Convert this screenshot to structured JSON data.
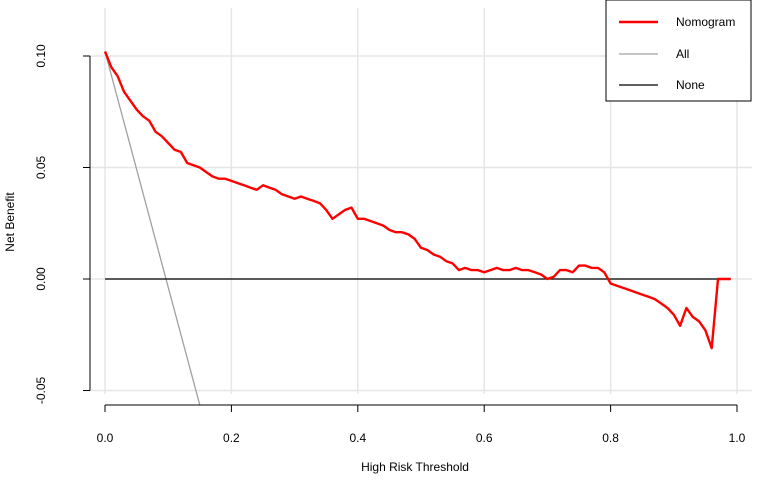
{
  "chart_data": {
    "type": "line",
    "xlabel": "High Risk Threshold",
    "ylabel": "Net Benefit",
    "xlim": [
      0,
      1
    ],
    "ylim": [
      -0.05,
      0.105
    ],
    "xticks": [
      "0.0",
      "0.2",
      "0.4",
      "0.6",
      "0.8",
      "1.0"
    ],
    "xtick_values": [
      0,
      0.2,
      0.4,
      0.6,
      0.8,
      1.0
    ],
    "yticks": [
      "-0.05",
      "0.00",
      "0.05",
      "0.10"
    ],
    "ytick_values": [
      -0.05,
      0,
      0.05,
      0.1
    ],
    "grid": true,
    "legend_position": "top-right",
    "series": [
      {
        "name": "Nomogram",
        "color": "#ff0000",
        "x": [
          0.0,
          0.01,
          0.02,
          0.03,
          0.04,
          0.05,
          0.06,
          0.07,
          0.08,
          0.09,
          0.1,
          0.11,
          0.12,
          0.13,
          0.14,
          0.15,
          0.16,
          0.17,
          0.18,
          0.19,
          0.2,
          0.21,
          0.22,
          0.23,
          0.24,
          0.25,
          0.26,
          0.27,
          0.28,
          0.29,
          0.3,
          0.31,
          0.32,
          0.33,
          0.34,
          0.35,
          0.36,
          0.37,
          0.38,
          0.39,
          0.4,
          0.41,
          0.42,
          0.43,
          0.44,
          0.45,
          0.46,
          0.47,
          0.48,
          0.49,
          0.5,
          0.51,
          0.52,
          0.53,
          0.54,
          0.55,
          0.56,
          0.57,
          0.58,
          0.59,
          0.6,
          0.61,
          0.62,
          0.63,
          0.64,
          0.65,
          0.66,
          0.67,
          0.68,
          0.69,
          0.7,
          0.71,
          0.72,
          0.73,
          0.74,
          0.75,
          0.76,
          0.77,
          0.78,
          0.79,
          0.8,
          0.81,
          0.82,
          0.83,
          0.84,
          0.85,
          0.86,
          0.87,
          0.88,
          0.89,
          0.9,
          0.91,
          0.92,
          0.93,
          0.94,
          0.95,
          0.96,
          0.97,
          0.98,
          0.99
        ],
        "y": [
          0.102,
          0.095,
          0.091,
          0.084,
          0.08,
          0.076,
          0.073,
          0.071,
          0.066,
          0.064,
          0.061,
          0.058,
          0.057,
          0.052,
          0.051,
          0.05,
          0.048,
          0.046,
          0.045,
          0.045,
          0.044,
          0.043,
          0.042,
          0.041,
          0.04,
          0.042,
          0.041,
          0.04,
          0.038,
          0.037,
          0.036,
          0.037,
          0.036,
          0.035,
          0.034,
          0.031,
          0.027,
          0.029,
          0.031,
          0.032,
          0.027,
          0.027,
          0.026,
          0.025,
          0.024,
          0.022,
          0.021,
          0.021,
          0.02,
          0.018,
          0.014,
          0.013,
          0.011,
          0.01,
          0.008,
          0.007,
          0.004,
          0.005,
          0.004,
          0.004,
          0.003,
          0.004,
          0.005,
          0.004,
          0.004,
          0.005,
          0.004,
          0.004,
          0.003,
          0.002,
          0.0,
          0.001,
          0.004,
          0.004,
          0.003,
          0.006,
          0.006,
          0.005,
          0.005,
          0.003,
          -0.002,
          -0.003,
          -0.004,
          -0.005,
          -0.006,
          -0.007,
          -0.008,
          -0.009,
          -0.011,
          -0.013,
          -0.016,
          -0.021,
          -0.013,
          -0.017,
          -0.019,
          -0.023,
          -0.031,
          0.0,
          0.0,
          0.0
        ]
      },
      {
        "name": "All",
        "color": "#a0a0a0",
        "x": [
          0.0,
          0.15
        ],
        "y": [
          0.102,
          -0.0565
        ]
      },
      {
        "name": "None",
        "color": "#000000",
        "x": [
          0.0,
          0.99
        ],
        "y": [
          0.0,
          0.0
        ]
      }
    ]
  }
}
